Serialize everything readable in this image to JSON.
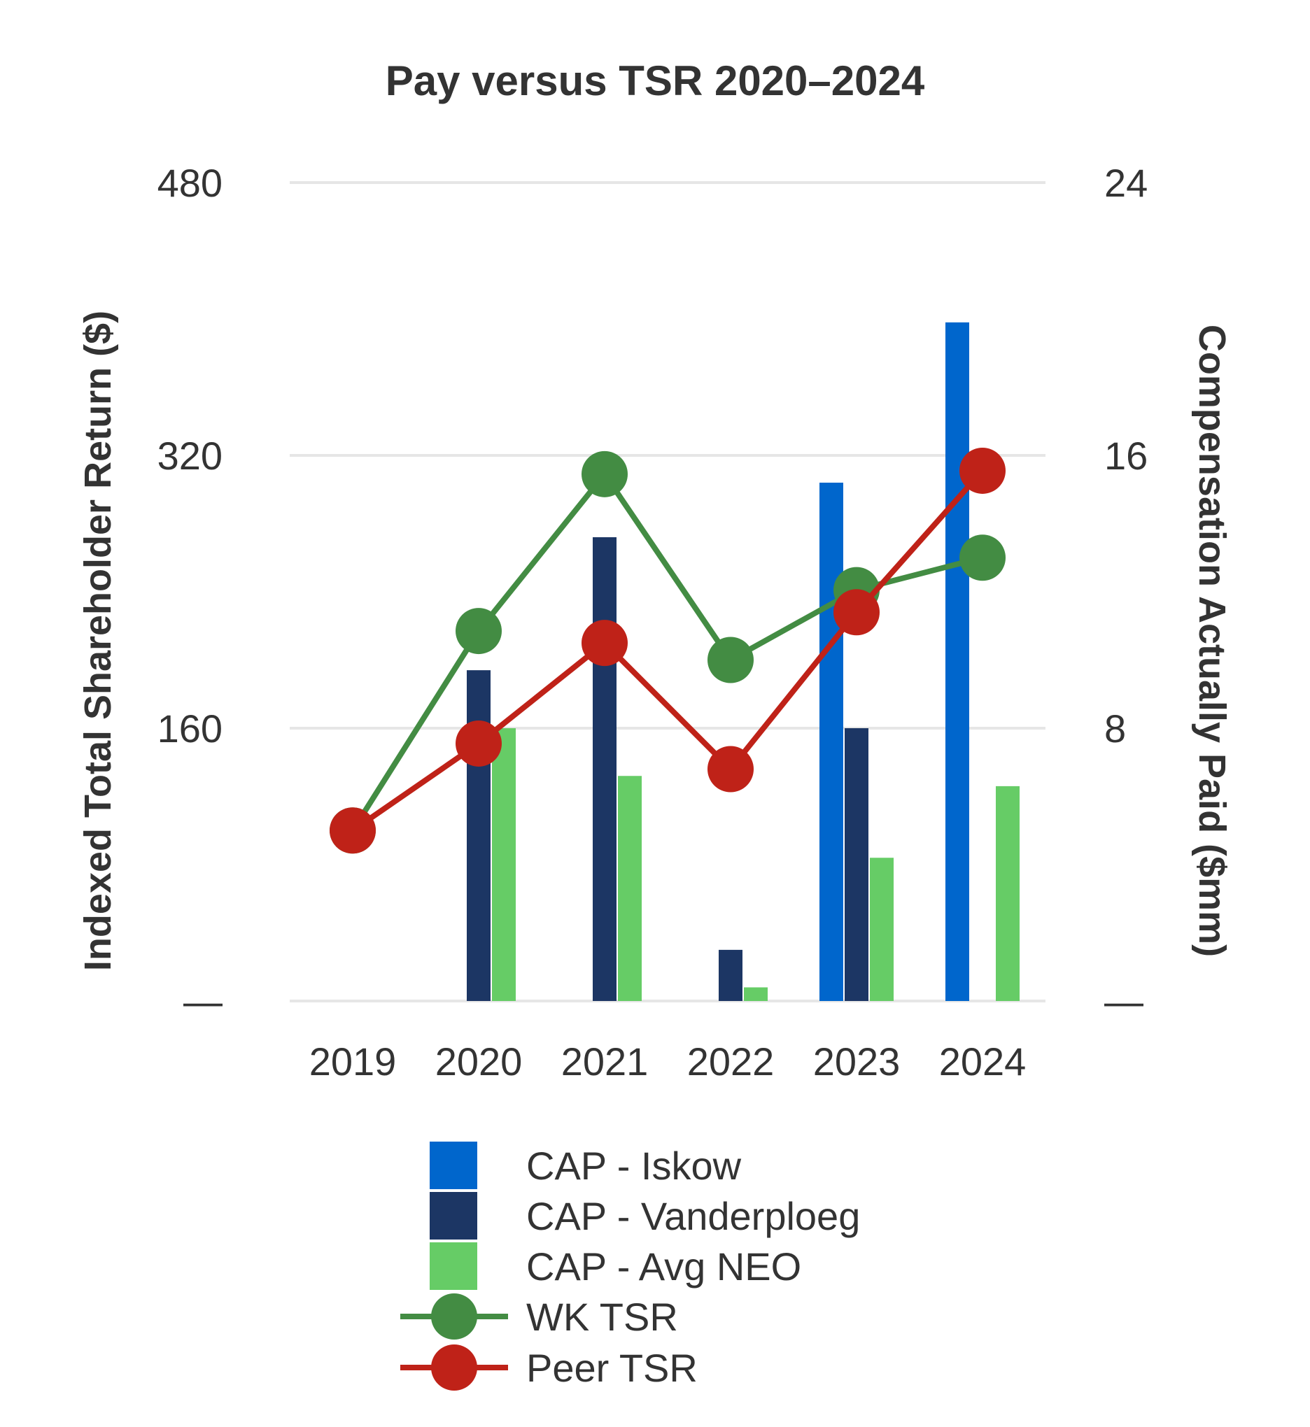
{
  "chart_data": {
    "type": "bar",
    "title": "Pay versus TSR 2020–2024",
    "categories": [
      "2019",
      "2020",
      "2021",
      "2022",
      "2023",
      "2024"
    ],
    "y_left": {
      "label": "Indexed Total Shareholder Return ($)",
      "range": [
        0,
        480
      ],
      "ticks": [
        "—",
        "160",
        "320",
        "480"
      ],
      "tick_values": [
        0,
        160,
        320,
        480
      ]
    },
    "y_right": {
      "label": "Compensation Actually Paid ($mm)",
      "range": [
        0,
        24
      ],
      "ticks": [
        "—",
        "8",
        "16",
        "24"
      ],
      "tick_values": [
        0,
        8,
        16,
        24
      ]
    },
    "bar_series": [
      {
        "name": "CAP - Iskow",
        "color": "#0066CC",
        "values": [
          null,
          null,
          null,
          null,
          15.2,
          19.9
        ]
      },
      {
        "name": "CAP - Vanderploeg",
        "color": "#1C3664",
        "values": [
          null,
          9.7,
          13.6,
          1.5,
          8.0,
          null
        ]
      },
      {
        "name": "CAP - Avg NEO",
        "color": "#66CC66",
        "values": [
          null,
          8.0,
          6.6,
          0.4,
          4.2,
          6.3
        ]
      }
    ],
    "line_series": [
      {
        "name": "WK TSR",
        "color": "#438C43",
        "values": [
          100,
          217,
          309,
          200,
          241,
          260
        ]
      },
      {
        "name": "Peer TSR",
        "color": "#BF2218",
        "values": [
          100,
          151,
          210,
          136,
          228,
          311
        ]
      }
    ],
    "grid": true,
    "legend_position": "bottom"
  }
}
